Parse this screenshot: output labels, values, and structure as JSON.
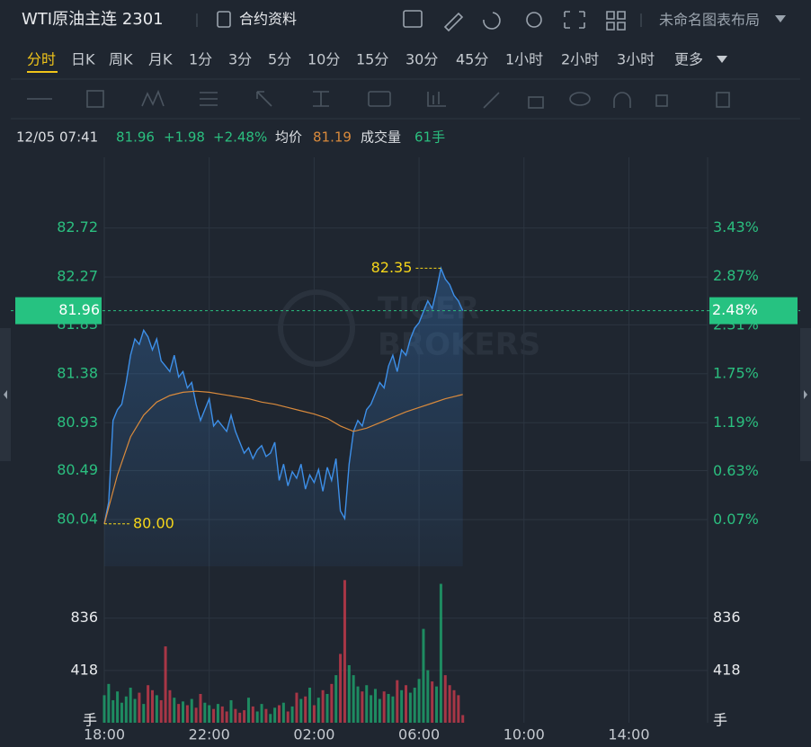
{
  "header": {
    "title": "WTI原油主连 2301",
    "contract_info": "合约资料",
    "layout_name": "未命名图表布局"
  },
  "timeframes": {
    "items": [
      "分时",
      "日K",
      "周K",
      "月K",
      "1分",
      "3分",
      "5分",
      "10分",
      "15分",
      "30分",
      "45分",
      "1小时",
      "2小时",
      "3小时",
      "更多"
    ],
    "active": 0
  },
  "info": {
    "datetime": "12/05 07:41",
    "price": "81.96",
    "change": "+1.98",
    "change_pct": "+2.48%",
    "avg": "81.19",
    "volume_label": "成交量",
    "volume": "61手"
  },
  "chart_data": [
    {
      "type": "line",
      "x": [
        "18:00",
        "18:10",
        "18:20",
        "18:30",
        "18:40",
        "18:50",
        "19:00",
        "19:10",
        "19:20",
        "19:30",
        "19:40",
        "19:50",
        "20:00",
        "20:10",
        "20:20",
        "20:30",
        "20:40",
        "20:50",
        "21:00",
        "21:10",
        "21:20",
        "21:30",
        "21:40",
        "21:50",
        "22:00",
        "22:10",
        "22:20",
        "22:30",
        "22:40",
        "22:50",
        "23:00",
        "23:10",
        "23:20",
        "23:30",
        "23:40",
        "23:50",
        "00:00",
        "00:10",
        "00:20",
        "00:30",
        "00:40",
        "00:50",
        "01:00",
        "01:10",
        "01:20",
        "01:30",
        "01:40",
        "01:50",
        "02:00",
        "02:10",
        "02:20",
        "02:30",
        "02:40",
        "02:50",
        "03:00",
        "03:10",
        "03:20",
        "03:30",
        "03:40",
        "03:50",
        "04:00",
        "04:10",
        "04:20",
        "04:30",
        "04:40",
        "04:50",
        "05:00",
        "05:10",
        "05:20",
        "05:30",
        "05:40",
        "05:50",
        "06:00",
        "06:10",
        "06:20",
        "06:30",
        "06:40",
        "06:50",
        "07:00",
        "07:10",
        "07:20",
        "07:30",
        "07:40"
      ],
      "series": [
        {
          "color": "#3d8fe8",
          "values": [
            80.0,
            80.2,
            80.95,
            81.05,
            81.1,
            81.3,
            81.55,
            81.7,
            81.65,
            81.78,
            81.72,
            81.6,
            81.7,
            81.5,
            81.45,
            81.4,
            81.55,
            81.35,
            81.4,
            81.25,
            81.3,
            81.1,
            80.95,
            81.05,
            81.15,
            80.9,
            80.95,
            80.9,
            80.85,
            81.0,
            80.85,
            80.75,
            80.65,
            80.7,
            80.6,
            80.68,
            80.72,
            80.62,
            80.65,
            80.75,
            80.4,
            80.55,
            80.35,
            80.48,
            80.42,
            80.55,
            80.32,
            80.45,
            80.38,
            80.5,
            80.3,
            80.52,
            80.4,
            80.6,
            80.12,
            80.05,
            80.55,
            80.85,
            80.95,
            80.9,
            81.05,
            81.1,
            81.2,
            81.3,
            81.25,
            81.45,
            81.55,
            81.4,
            81.6,
            81.55,
            81.7,
            81.8,
            81.85,
            81.95,
            82.05,
            81.98,
            82.15,
            82.35,
            82.25,
            82.2,
            82.1,
            82.05,
            81.96
          ]
        },
        {
          "name": "均价",
          "color": "#d98a3c",
          "x": [
            "18:00",
            "18:30",
            "19:00",
            "19:30",
            "20:00",
            "20:30",
            "21:00",
            "21:30",
            "22:00",
            "22:30",
            "23:00",
            "23:30",
            "00:00",
            "00:30",
            "01:00",
            "01:30",
            "02:00",
            "02:30",
            "03:00",
            "03:30",
            "04:00",
            "04:30",
            "05:00",
            "05:30",
            "06:00",
            "06:30",
            "07:00",
            "07:30",
            "07:40"
          ],
          "values": [
            80.0,
            80.45,
            80.8,
            81.0,
            81.12,
            81.18,
            81.21,
            81.22,
            81.21,
            81.19,
            81.17,
            81.15,
            81.12,
            81.1,
            81.07,
            81.04,
            81.01,
            80.97,
            80.9,
            80.85,
            80.88,
            80.93,
            80.98,
            81.03,
            81.07,
            81.11,
            81.15,
            81.18,
            81.19
          ]
        }
      ],
      "xlim": [
        "18:00",
        "17:00"
      ],
      "ylim": [
        79.61,
        83.37
      ],
      "yticks": [
        80.04,
        80.49,
        80.93,
        81.38,
        81.83,
        82.27,
        82.72
      ],
      "y2lim": [
        -0.46,
        4.24
      ],
      "y2ticks": [
        {
          "value": 0.07,
          "label": "0.07%"
        },
        {
          "value": 0.63,
          "label": "0.63%"
        },
        {
          "value": 1.19,
          "label": "1.19%"
        },
        {
          "value": 1.75,
          "label": "1.75%"
        },
        {
          "value": 2.31,
          "label": "2.31%"
        },
        {
          "value": 2.87,
          "label": "2.87%"
        },
        {
          "value": 3.43,
          "label": "3.43%"
        }
      ],
      "grid": true,
      "last": 81.96,
      "last_pct": {
        "value": 2.48,
        "label": "2.48%"
      },
      "annotations": [
        {
          "x": "06:50",
          "value": 82.35,
          "label": "82.35"
        },
        {
          "x": "18:00",
          "value": 80.0,
          "label": "80.00"
        }
      ],
      "watermark": [
        "TIGER",
        "BROKERS"
      ]
    },
    {
      "type": "bar",
      "series": [
        {
          "up_color": "#1f9e6a",
          "down_color": "#c0394a",
          "values": [
            220,
            310,
            180,
            250,
            160,
            210,
            280,
            190,
            240,
            150,
            300,
            260,
            220,
            180,
            610,
            260,
            200,
            150,
            170,
            140,
            190,
            120,
            230,
            160,
            140,
            110,
            150,
            130,
            90,
            180,
            110,
            80,
            100,
            200,
            130,
            90,
            150,
            110,
            70,
            120,
            140,
            160,
            90,
            130,
            240,
            190,
            210,
            280,
            140,
            200,
            260,
            230,
            310,
            380,
            550,
            1140,
            460,
            380,
            290,
            250,
            300,
            220,
            270,
            190,
            250,
            230,
            210,
            340,
            260,
            300,
            240,
            280,
            350,
            750,
            420,
            330,
            290,
            1110,
            380,
            300,
            260,
            220,
            61
          ]
        }
      ],
      "ylim": [
        0,
        1250
      ],
      "yticks": [
        418,
        836
      ],
      "y2ticks": [
        418,
        836
      ],
      "y_unit": "手",
      "xticks": [
        "18:00",
        "22:00",
        "02:00",
        "06:00",
        "10:00",
        "14:00"
      ],
      "grid": true
    }
  ]
}
